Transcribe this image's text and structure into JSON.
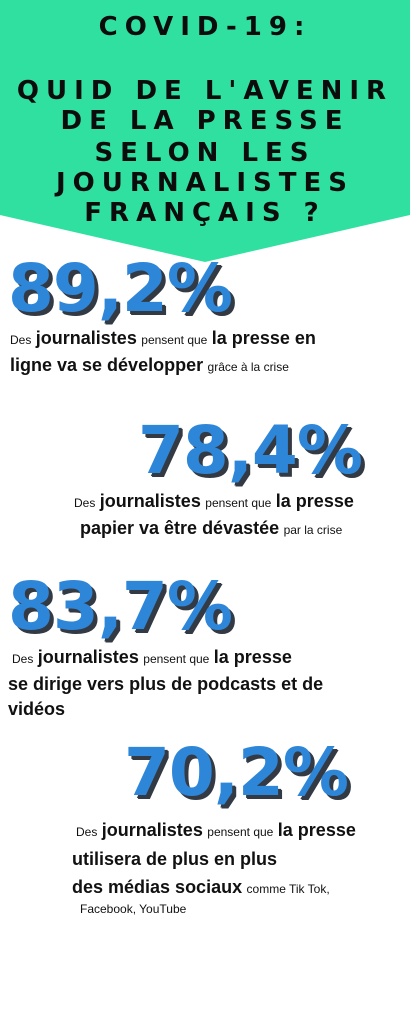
{
  "header": {
    "color": "#30e0a1",
    "line1": "COVID-19:",
    "line2": "QUID DE L'AVENIR",
    "line3": "DE LA PRESSE",
    "line4": "SELON LES",
    "line5": "JOURNALISTES",
    "line6": "FRANÇAIS ?"
  },
  "accent_color": "#2e86d9",
  "stats": [
    {
      "value": "89,2%",
      "des": "Des",
      "journalistes": "journalistes",
      "pensent": "pensent que",
      "bold_a": "la presse en",
      "bold_b": "ligne va se développer",
      "tail": "grâce à la crise"
    },
    {
      "value": "78,4%",
      "des": "Des",
      "journalistes": "journalistes",
      "pensent": "pensent que",
      "bold_a": "la presse",
      "bold_b": "papier va être dévastée",
      "tail": "par la crise"
    },
    {
      "value": "83,7%",
      "des": "Des",
      "journalistes": "journalistes",
      "pensent": "pensent que",
      "bold_a": "la presse",
      "bold_b": "se dirige vers plus de podcasts et de",
      "bold_c": "vidéos"
    },
    {
      "value": "70,2%",
      "des": "Des",
      "journalistes": "journalistes",
      "pensent": "pensent que",
      "bold_a": "la presse",
      "bold_b": "utilisera de plus en plus",
      "bold_c": "des médias sociaux",
      "tail": "comme Tik Tok,",
      "tail2": "Facebook, YouTube"
    }
  ]
}
